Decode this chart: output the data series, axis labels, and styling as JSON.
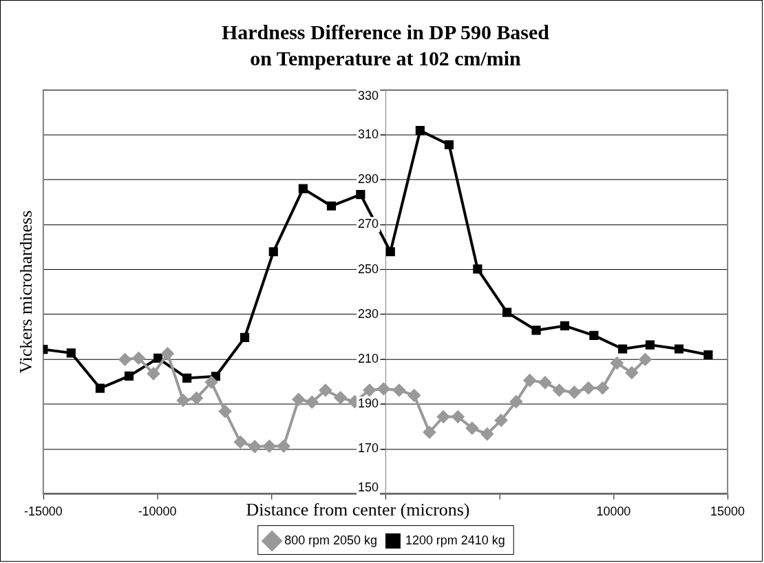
{
  "chart_data": {
    "type": "line",
    "title": "Hardness Difference in DP 590 Based\non Temperature at 102 cm/min",
    "xlabel": "Distance from center (microns)",
    "ylabel": "Vickers microhardness",
    "xlim": [
      -15000,
      15000
    ],
    "xticks": [
      -15000,
      -10000,
      {
        "value": -5000,
        "label": null
      },
      {
        "value": 0,
        "label": null
      },
      {
        "value": 5000,
        "label": null
      },
      10000,
      15000
    ],
    "ylim": [
      150,
      330
    ],
    "yticks": [
      150,
      170,
      190,
      210,
      230,
      250,
      270,
      290,
      310,
      330
    ],
    "grid": "y",
    "legend": "bottom",
    "line_style": "solid",
    "series": [
      {
        "name": "800 rpm 2050 kg",
        "color": "#999999",
        "marker": "diamond",
        "x": [
          -11420,
          -10820,
          -10170,
          -9550,
          -8870,
          -8280,
          -7630,
          -7030,
          -6360,
          -5730,
          -5090,
          -4460,
          -3810,
          -3220,
          -2630,
          -1970,
          -1350,
          -700,
          -80,
          600,
          1260,
          1930,
          2540,
          3180,
          3800,
          4460,
          5070,
          5730,
          6330,
          7000,
          7620,
          8280,
          8900,
          9520,
          10150,
          10800,
          11390
        ],
        "values": [
          209.9,
          210.5,
          203.6,
          212.5,
          191.7,
          192.7,
          199.8,
          186.8,
          173.1,
          171.1,
          171.3,
          171.3,
          192.1,
          190.9,
          196.2,
          192.9,
          191.1,
          196.2,
          196.8,
          196.2,
          193.9,
          177.5,
          184.4,
          184.4,
          179.3,
          176.7,
          182.8,
          191.1,
          200.6,
          199.6,
          196.2,
          195.3,
          197.2,
          197.2,
          208.3,
          204,
          209.9
        ]
      },
      {
        "name": "1200 rpm 2410 kg",
        "color": "#000000",
        "marker": "square",
        "x": [
          -15000,
          -13780,
          -12510,
          -11240,
          -9970,
          -8700,
          -7440,
          -6170,
          -4910,
          -3610,
          -2370,
          -1090,
          220,
          1520,
          2790,
          4040,
          5330,
          6610,
          7860,
          9140,
          10400,
          11600,
          12870,
          14150
        ],
        "values": [
          214.4,
          212.8,
          197.1,
          202.5,
          210.5,
          201.6,
          202.4,
          219.7,
          257.9,
          286,
          278.3,
          283.4,
          257.9,
          311.9,
          305.6,
          250.2,
          230.9,
          222.9,
          224.9,
          220.6,
          214.6,
          216.4,
          214.6,
          212
        ]
      }
    ]
  }
}
